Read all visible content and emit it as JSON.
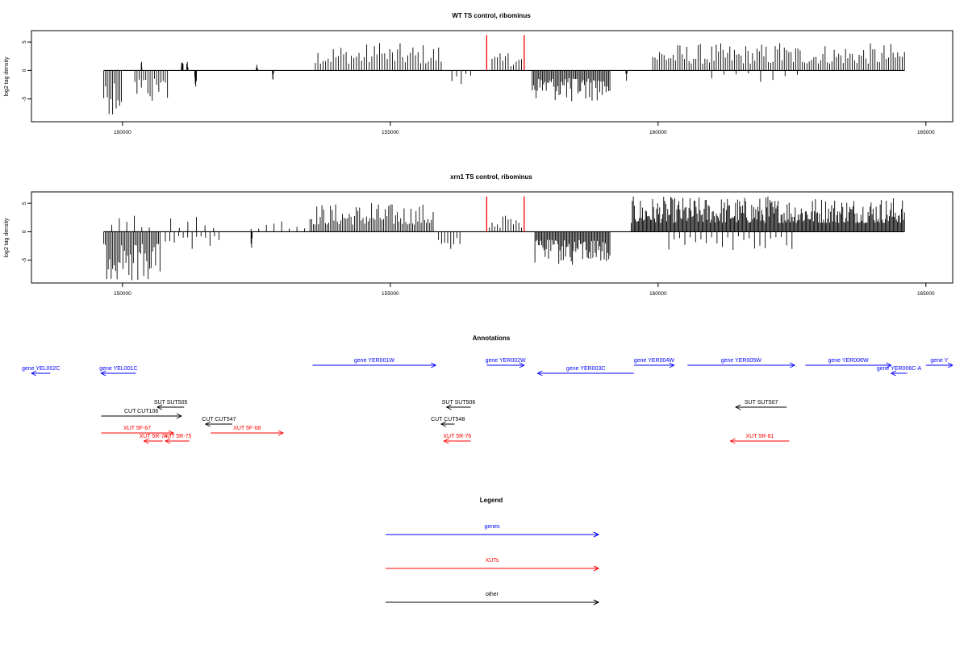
{
  "chart_data": [
    {
      "type": "bar",
      "title": "WT TS control, ribominus",
      "ylabel": "log2 tag density",
      "xlim": [
        148300,
        165500
      ],
      "ylim": [
        -9,
        7
      ],
      "xticks": [
        150000,
        155000,
        160000,
        165000
      ],
      "xtick_labels": [
        "150000",
        "155000",
        "160000",
        "165000"
      ],
      "yticks": [
        -5,
        0,
        5
      ],
      "ytick_labels": [
        "-5",
        "0",
        "5"
      ],
      "baseline": {
        "x_start": 149650,
        "x_end": 164600
      },
      "markers": [
        {
          "x": 156800,
          "y_top": 6.2,
          "color": "#ff0000"
        },
        {
          "x": 157500,
          "y_top": 6.2,
          "color": "#ff0000"
        }
      ],
      "segments": [
        {
          "x_start": 149650,
          "x_end": 149980,
          "side": "neg",
          "max": 7.7,
          "density": 0.12
        },
        {
          "x_start": 150230,
          "x_end": 150840,
          "side": "neg",
          "max": 5.3,
          "density": 0.1
        },
        {
          "x_start": 150350,
          "x_end": 150360,
          "side": "pos",
          "max": 1.5,
          "density": 1
        },
        {
          "x_start": 151200,
          "x_end": 151220,
          "side": "pos",
          "max": 1.5,
          "density": 1
        },
        {
          "x_start": 151100,
          "x_end": 151130,
          "side": "pos",
          "max": 1.4,
          "density": 1
        },
        {
          "x_start": 151350,
          "x_end": 151380,
          "side": "neg",
          "max": 2.8,
          "density": 1
        },
        {
          "x_start": 152500,
          "x_end": 152520,
          "side": "pos",
          "max": 1.0,
          "density": 1
        },
        {
          "x_start": 152800,
          "x_end": 152820,
          "side": "neg",
          "max": 1.6,
          "density": 1
        },
        {
          "x_start": 153600,
          "x_end": 155950,
          "side": "pos",
          "max": 4.8,
          "density": 0.08
        },
        {
          "x_start": 156150,
          "x_end": 156500,
          "side": "neg",
          "max": 2.4,
          "density": 0.05
        },
        {
          "x_start": 156900,
          "x_end": 157450,
          "side": "pos",
          "max": 3.0,
          "density": 0.08
        },
        {
          "x_start": 157650,
          "x_end": 159100,
          "side": "neg",
          "max": 5.4,
          "density": 0.16
        },
        {
          "x_start": 159400,
          "x_end": 159420,
          "side": "neg",
          "max": 1.8,
          "density": 1
        },
        {
          "x_start": 159900,
          "x_end": 164600,
          "side": "pos",
          "max": 4.8,
          "density": 0.09
        },
        {
          "x_start": 161000,
          "x_end": 162600,
          "side": "neg",
          "max": 2.0,
          "density": 0.02
        }
      ]
    },
    {
      "type": "bar",
      "title": "xrn1 TS control, ribominus",
      "ylabel": "log2 tag density",
      "xlim": [
        148300,
        165500
      ],
      "ylim": [
        -9,
        7
      ],
      "xticks": [
        150000,
        155000,
        160000,
        165000
      ],
      "xtick_labels": [
        "150000",
        "155000",
        "160000",
        "165000"
      ],
      "yticks": [
        -5,
        0,
        5
      ],
      "ytick_labels": [
        "-5",
        "0",
        "5"
      ],
      "baseline": {
        "x_start": 149650,
        "x_end": 164600
      },
      "markers": [
        {
          "x": 156800,
          "y_top": 6.2,
          "color": "#ff0000"
        },
        {
          "x": 157500,
          "y_top": 6.2,
          "color": "#ff0000"
        }
      ],
      "segments": [
        {
          "x_start": 149650,
          "x_end": 150700,
          "side": "neg",
          "max": 8.5,
          "density": 0.14
        },
        {
          "x_start": 149800,
          "x_end": 150500,
          "side": "pos",
          "max": 2.8,
          "density": 0.03
        },
        {
          "x_start": 150800,
          "x_end": 151800,
          "side": "neg",
          "max": 3.0,
          "density": 0.05
        },
        {
          "x_start": 150900,
          "x_end": 151700,
          "side": "pos",
          "max": 2.6,
          "density": 0.03
        },
        {
          "x_start": 152400,
          "x_end": 153400,
          "side": "pos",
          "max": 1.8,
          "density": 0.03
        },
        {
          "x_start": 152400,
          "x_end": 152420,
          "side": "neg",
          "max": 2.8,
          "density": 1
        },
        {
          "x_start": 153500,
          "x_end": 155800,
          "side": "pos",
          "max": 5.0,
          "density": 0.12
        },
        {
          "x_start": 155900,
          "x_end": 156300,
          "side": "neg",
          "max": 3.0,
          "density": 0.08
        },
        {
          "x_start": 156850,
          "x_end": 157450,
          "side": "pos",
          "max": 2.8,
          "density": 0.08
        },
        {
          "x_start": 157700,
          "x_end": 159100,
          "side": "neg",
          "max": 5.8,
          "density": 0.18
        },
        {
          "x_start": 159500,
          "x_end": 164600,
          "side": "pos",
          "max": 6.2,
          "density": 0.2
        },
        {
          "x_start": 160200,
          "x_end": 162500,
          "side": "neg",
          "max": 3.2,
          "density": 0.04
        }
      ]
    }
  ],
  "annotations": {
    "title": "Annotations",
    "colors": {
      "gene": "#0000ff",
      "xut": "#ff0000",
      "other": "#000000"
    },
    "features": [
      {
        "label": "gene YEL002C",
        "cat": "gene",
        "x1": 148300,
        "x2": 148650,
        "dir": "left",
        "row": 0
      },
      {
        "label": "gene YEL001C",
        "cat": "gene",
        "x1": 149600,
        "x2": 150250,
        "dir": "left",
        "row": 0
      },
      {
        "label": "gene YER001W",
        "cat": "gene",
        "x1": 153550,
        "x2": 155850,
        "dir": "right",
        "row": 0
      },
      {
        "label": "gene YER002W",
        "cat": "gene",
        "x1": 156800,
        "x2": 157500,
        "dir": "right",
        "row": 0
      },
      {
        "label": "gene YER003C",
        "cat": "gene",
        "x1": 157750,
        "x2": 159550,
        "dir": "left",
        "row": 0
      },
      {
        "label": "gene YER004W",
        "cat": "gene",
        "x1": 159550,
        "x2": 160300,
        "dir": "right",
        "row": 0
      },
      {
        "label": "gene YER005W",
        "cat": "gene",
        "x1": 160550,
        "x2": 162550,
        "dir": "right",
        "row": 0
      },
      {
        "label": "gene YER006W",
        "cat": "gene",
        "x1": 162750,
        "x2": 164350,
        "dir": "right",
        "row": 0
      },
      {
        "label": "gene YER006C-A",
        "cat": "gene",
        "x1": 164350,
        "x2": 164650,
        "dir": "left",
        "row": 0
      },
      {
        "label": "gene Y",
        "cat": "gene",
        "x1": 165000,
        "x2": 165500,
        "dir": "right",
        "row": 0
      },
      {
        "label": "SUT SUT505",
        "cat": "other",
        "x1": 150650,
        "x2": 151150,
        "dir": "left",
        "row": 1
      },
      {
        "label": "CUT CUT106",
        "cat": "other",
        "x1": 149600,
        "x2": 151100,
        "dir": "right",
        "row": 1
      },
      {
        "label": "CUT CUT547",
        "cat": "other",
        "x1": 151550,
        "x2": 152050,
        "dir": "left",
        "row": 1
      },
      {
        "label": "SUT SUT506",
        "cat": "other",
        "x1": 156050,
        "x2": 156500,
        "dir": "left",
        "row": 1
      },
      {
        "label": "CUT CUT548",
        "cat": "other",
        "x1": 155950,
        "x2": 156200,
        "dir": "left",
        "row": 1
      },
      {
        "label": "SUT SUT507",
        "cat": "other",
        "x1": 161450,
        "x2": 162400,
        "dir": "left",
        "row": 1
      },
      {
        "label": "XUT 5F-67",
        "cat": "xut",
        "x1": 149600,
        "x2": 150950,
        "dir": "right",
        "row": 2
      },
      {
        "label": "XUT 5R-74",
        "cat": "xut",
        "x1": 150400,
        "x2": 150750,
        "dir": "left",
        "row": 2
      },
      {
        "label": "XUT 5R-75",
        "cat": "xut",
        "x1": 150800,
        "x2": 151250,
        "dir": "left",
        "row": 2
      },
      {
        "label": "XUT 5F-68",
        "cat": "xut",
        "x1": 151650,
        "x2": 153000,
        "dir": "right",
        "row": 2
      },
      {
        "label": "XUT 5R-76",
        "cat": "xut",
        "x1": 156000,
        "x2": 156500,
        "dir": "left",
        "row": 2
      },
      {
        "label": "XUT 5R-81",
        "cat": "xut",
        "x1": 161350,
        "x2": 162450,
        "dir": "left",
        "row": 2
      }
    ]
  },
  "legend": {
    "title": "Legend",
    "items": [
      {
        "label": "genes",
        "color": "#0000ff"
      },
      {
        "label": "XUTs",
        "color": "#ff0000"
      },
      {
        "label": "other",
        "color": "#000000"
      }
    ]
  }
}
